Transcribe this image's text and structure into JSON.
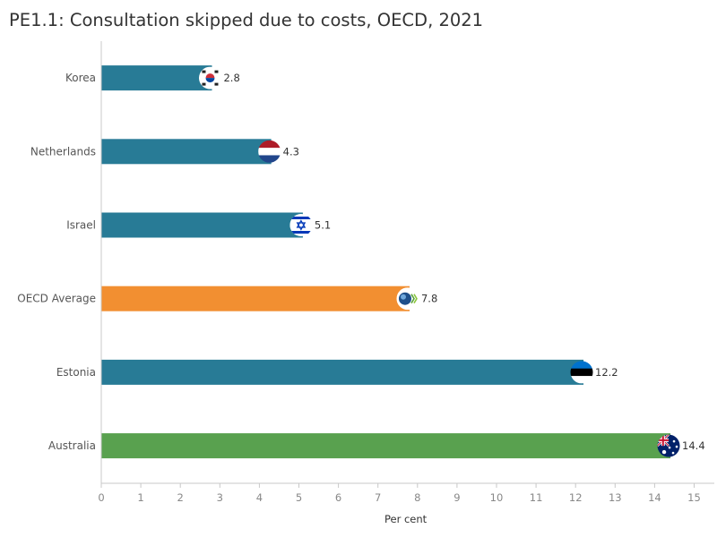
{
  "page": {
    "title": "PE1.1: Consultation skipped due to costs, OECD, 2021"
  },
  "chart_data": {
    "type": "bar",
    "orientation": "horizontal",
    "title": "PE1.1: Consultation skipped due to costs, OECD, 2021",
    "xlabel": "Per cent",
    "ylabel": "",
    "xlim": [
      0,
      15.5
    ],
    "ticks": [
      "0",
      "1",
      "2",
      "3",
      "4",
      "5",
      "6",
      "7",
      "8",
      "9",
      "10",
      "11",
      "12",
      "13",
      "14",
      "15"
    ],
    "grid": false,
    "legend": "none",
    "categories": [
      "Korea",
      "Netherlands",
      "Israel",
      "OECD Average",
      "Estonia",
      "Australia"
    ],
    "values": [
      2.8,
      4.3,
      5.1,
      7.8,
      12.2,
      14.4
    ],
    "value_labels": [
      "2.8",
      "4.3",
      "5.1",
      "7.8",
      "12.2",
      "14.4"
    ],
    "colors": [
      "#287b96",
      "#287b96",
      "#287b96",
      "#f28f31",
      "#287b96",
      "#59a14f"
    ],
    "markers": [
      "flag-korea-icon",
      "flag-netherlands-icon",
      "flag-israel-icon",
      "oecd-logo-icon",
      "flag-estonia-icon",
      "flag-australia-icon"
    ]
  }
}
